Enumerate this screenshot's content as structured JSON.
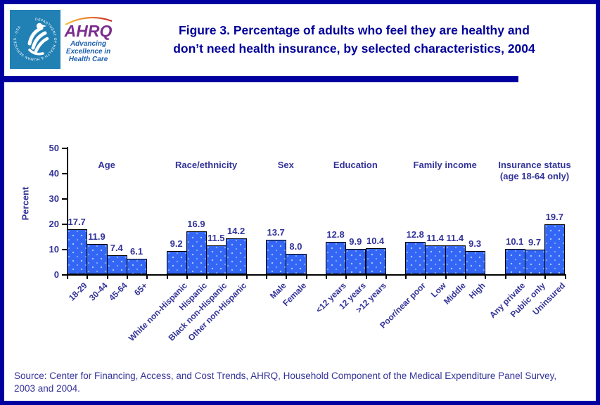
{
  "page": {
    "background": "#FFFFFF",
    "frame_color": "#0000A0"
  },
  "header": {
    "hhs_logo": {
      "icon": "hhs-eagle-icon",
      "ring_text": "DEPARTMENT OF HEALTH & HUMAN SERVICES · USA"
    },
    "ahrq_logo": {
      "acronym": "AHRQ",
      "tagline_line1": "Advancing",
      "tagline_line2": "Excellence in",
      "tagline_line3": "Health Care"
    },
    "title_line1": "Figure 3. Percentage of adults who feel they are healthy and",
    "title_line2": "don’t need health insurance, by selected characteristics, 2004"
  },
  "chart_data": {
    "type": "bar",
    "title": "Figure 3. Percentage of adults who feel they are healthy and don’t need health insurance, by selected characteristics, 2004",
    "xlabel": "",
    "ylabel": "Percent",
    "ylim": [
      0,
      50
    ],
    "yticks": [
      0,
      10,
      20,
      30,
      40,
      50
    ],
    "grid": false,
    "legend": false,
    "bar_fill": "#3366F5",
    "bar_border": "#000000",
    "label_color": "#333399",
    "groups": [
      {
        "label": "Age",
        "categories": [
          "18-29",
          "30-44",
          "45-64",
          "65+"
        ],
        "values": [
          17.7,
          11.9,
          7.4,
          6.1
        ]
      },
      {
        "label": "Race/ethnicity",
        "categories": [
          "White non-Hispanic",
          "Hispanic",
          "Black non-Hispanic",
          "Other non-Hispanic"
        ],
        "values": [
          9.2,
          16.9,
          11.5,
          14.2
        ]
      },
      {
        "label": "Sex",
        "categories": [
          "Male",
          "Female"
        ],
        "values": [
          13.7,
          8.0
        ]
      },
      {
        "label": "Education",
        "categories": [
          "<12 years",
          "12 years",
          ">12 years"
        ],
        "values": [
          12.8,
          9.9,
          10.4
        ]
      },
      {
        "label": "Family income",
        "categories": [
          "Poor/near poor",
          "Low",
          "Middle",
          "High"
        ],
        "values": [
          12.8,
          11.4,
          11.4,
          9.3
        ]
      },
      {
        "label": "Insurance status",
        "label_line2": "(age 18-64 only)",
        "categories": [
          "Any private",
          "Public only",
          "Uninsured"
        ],
        "values": [
          10.1,
          9.7,
          19.7
        ]
      }
    ]
  },
  "footer": {
    "source_line1": "Source: Center for Financing, Access, and Cost Trends, AHRQ, Household Component of the Medical Expenditure Panel Survey,",
    "source_line2": "2003 and 2004."
  }
}
